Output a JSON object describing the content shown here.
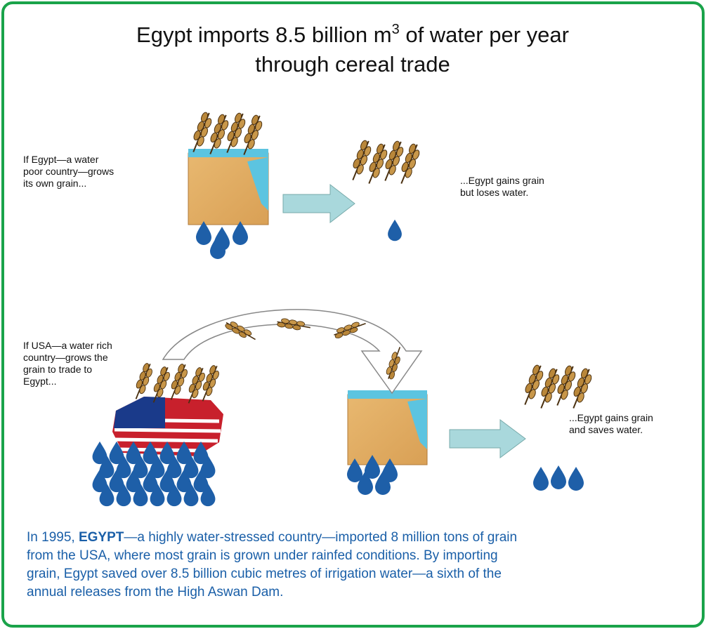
{
  "title": {
    "line1_before": "Egypt imports 8.5 billion m",
    "superscript": "3",
    "line1_after": " of water per year",
    "line2": "through cereal trade"
  },
  "panels": [
    {
      "caption_left": [
        "If Egypt—a water",
        "poor country—grows",
        "its own grain..."
      ],
      "caption_right": [
        "...Egypt gains grain",
        "but loses water."
      ]
    },
    {
      "caption_left": [
        "If USA—a water rich",
        "country—grows the",
        "grain to trade to",
        "Egypt..."
      ],
      "caption_right": [
        "...Egypt gains grain",
        "and saves water."
      ]
    }
  ],
  "footer": {
    "first_line": [
      "In 1995, ",
      "EGYPT",
      "—a highly water-stressed country—imported 8 million tons of grain"
    ],
    "lines": [
      "from the USA, where most grain is grown under rainfed conditions. By importing",
      "grain, Egypt saved over 8.5 billion cubic metres of irrigation water—a sixth of the",
      "annual releases from the High Aswan Dam."
    ]
  }
}
